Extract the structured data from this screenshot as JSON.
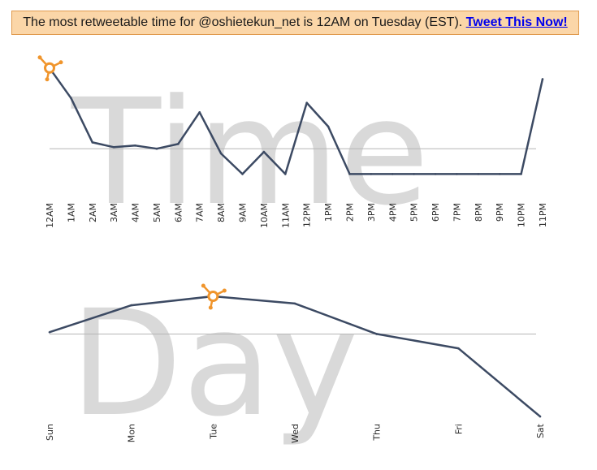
{
  "banner": {
    "text": "The most retweetable time for @oshietekun_net is 12AM on Tuesday (EST).",
    "link_label": "Tweet This Now!"
  },
  "colors": {
    "line": "#3c4a63",
    "reference_line": "#b5b5b5",
    "marker": "#f0952c",
    "watermark": "#d9d9d9",
    "banner_bg": "#fbd6a8",
    "banner_border": "#e09a4e"
  },
  "watermarks": {
    "time": "Time",
    "day": "Day"
  },
  "chart_data": [
    {
      "type": "line",
      "x_categories": [
        "12AM",
        "1AM",
        "2AM",
        "3AM",
        "4AM",
        "5AM",
        "6AM",
        "7AM",
        "8AM",
        "9AM",
        "10AM",
        "11AM",
        "12PM",
        "1PM",
        "2PM",
        "3PM",
        "4PM",
        "5PM",
        "6PM",
        "7PM",
        "8PM",
        "9PM",
        "10PM",
        "11PM"
      ],
      "values": [
        0.95,
        0.76,
        0.48,
        0.45,
        0.46,
        0.44,
        0.47,
        0.67,
        0.41,
        0.28,
        0.42,
        0.28,
        0.73,
        0.58,
        0.28,
        0.28,
        0.28,
        0.28,
        0.28,
        0.28,
        0.28,
        0.28,
        0.28,
        0.88
      ],
      "reference_value": 0.44,
      "ylim": [
        0,
        1
      ],
      "highlight_category": "12AM",
      "marker_icon": "hubspot-sprocket-icon"
    },
    {
      "type": "line",
      "x_categories": [
        "Sun",
        "Mon",
        "Tue",
        "Wed",
        "Thu",
        "Fri",
        "Sat"
      ],
      "values": [
        0.56,
        0.71,
        0.76,
        0.72,
        0.55,
        0.47,
        0.09
      ],
      "reference_value": 0.55,
      "ylim": [
        0,
        1
      ],
      "highlight_category": "Tue",
      "marker_icon": "hubspot-sprocket-icon"
    }
  ]
}
